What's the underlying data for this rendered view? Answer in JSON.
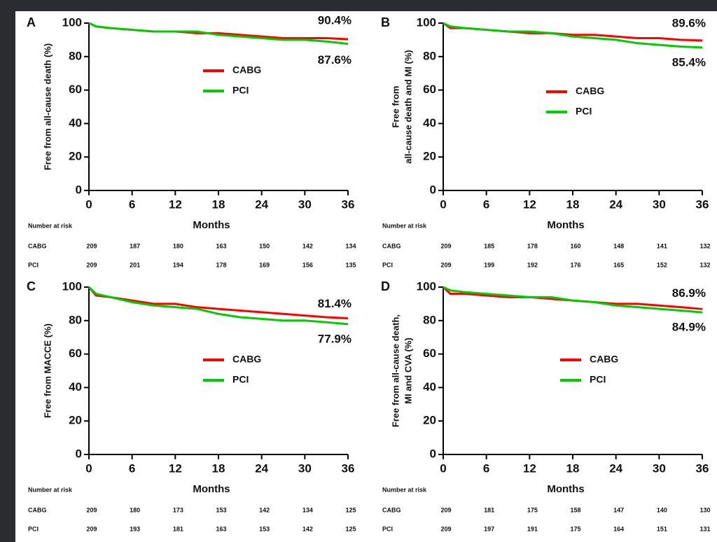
{
  "chart_data": [
    {
      "type": "line",
      "panel": "A",
      "ylabel": [
        "Free from all-cause death (%)"
      ],
      "xlabel": "Months",
      "x": [
        0,
        1,
        3,
        6,
        9,
        12,
        15,
        18,
        21,
        24,
        27,
        30,
        33,
        36
      ],
      "xlim": [
        0,
        36
      ],
      "xticks": [
        0,
        6,
        12,
        18,
        24,
        30,
        36
      ],
      "ylim": [
        0,
        100
      ],
      "yticks": [
        0,
        20,
        40,
        60,
        80,
        100
      ],
      "series": [
        {
          "name": "CABG",
          "color": "#ff0000",
          "values": [
            100,
            98,
            97,
            96,
            95,
            95,
            94,
            94,
            93,
            92,
            91,
            91,
            91,
            90.4
          ],
          "end_label": "90.4%"
        },
        {
          "name": "PCI",
          "color": "#00cc00",
          "values": [
            100,
            98,
            97,
            96,
            95,
            95,
            95,
            93,
            92,
            91,
            90,
            90,
            89,
            87.6
          ],
          "end_label": "87.6%"
        }
      ],
      "risk_table": {
        "title": "Number at risk",
        "rows": [
          {
            "name": "CABG",
            "values": [
              209,
              187,
              180,
              163,
              150,
              142,
              134
            ]
          },
          {
            "name": "PCI",
            "values": [
              209,
              201,
              194,
              178,
              169,
              156,
              135
            ]
          }
        ]
      }
    },
    {
      "type": "line",
      "panel": "B",
      "ylabel": [
        "Free from",
        "all-cause death and MI (%)"
      ],
      "xlabel": "Months",
      "x": [
        0,
        1,
        3,
        6,
        9,
        12,
        15,
        18,
        21,
        24,
        27,
        30,
        33,
        36
      ],
      "xlim": [
        0,
        36
      ],
      "xticks": [
        0,
        6,
        12,
        18,
        24,
        30,
        36
      ],
      "ylim": [
        0,
        100
      ],
      "yticks": [
        0,
        20,
        40,
        60,
        80,
        100
      ],
      "series": [
        {
          "name": "CABG",
          "color": "#ff0000",
          "values": [
            100,
            97,
            97,
            96,
            95,
            94,
            94,
            93,
            93,
            92,
            91,
            91,
            90,
            89.6
          ],
          "end_label": "89.6%"
        },
        {
          "name": "PCI",
          "color": "#00cc00",
          "values": [
            100,
            98,
            97,
            96,
            95,
            95,
            94,
            92,
            91,
            90,
            88,
            87,
            86,
            85.4
          ],
          "end_label": "85.4%"
        }
      ],
      "risk_table": {
        "title": "Number at risk",
        "rows": [
          {
            "name": "CABG",
            "values": [
              209,
              185,
              178,
              160,
              148,
              141,
              132
            ]
          },
          {
            "name": "PCI",
            "values": [
              209,
              199,
              192,
              176,
              165,
              152,
              132
            ]
          }
        ]
      }
    },
    {
      "type": "line",
      "panel": "C",
      "ylabel": [
        "Free from MACCE (%)"
      ],
      "xlabel": "Months",
      "x": [
        0,
        1,
        3,
        6,
        9,
        12,
        15,
        18,
        21,
        24,
        27,
        30,
        33,
        36
      ],
      "xlim": [
        0,
        36
      ],
      "xticks": [
        0,
        6,
        12,
        18,
        24,
        30,
        36
      ],
      "ylim": [
        0,
        100
      ],
      "yticks": [
        0,
        20,
        40,
        60,
        80,
        100
      ],
      "series": [
        {
          "name": "CABG",
          "color": "#ff0000",
          "values": [
            100,
            95,
            94,
            92,
            90,
            90,
            88,
            87,
            86,
            85,
            84,
            83,
            82,
            81.4
          ],
          "end_label": "81.4%"
        },
        {
          "name": "PCI",
          "color": "#00cc00",
          "values": [
            100,
            96,
            94,
            91,
            89,
            88,
            87,
            84,
            82,
            81,
            80,
            80,
            79,
            77.9
          ],
          "end_label": "77.9%"
        }
      ],
      "risk_table": {
        "title": "Number at risk",
        "rows": [
          {
            "name": "CABG",
            "values": [
              209,
              180,
              173,
              153,
              142,
              134,
              125
            ]
          },
          {
            "name": "PCI",
            "values": [
              209,
              193,
              181,
              163,
              153,
              142,
              125
            ]
          }
        ]
      }
    },
    {
      "type": "line",
      "panel": "D",
      "ylabel": [
        "Free from all-cause death,",
        "MI and CVA (%)"
      ],
      "xlabel": "Months",
      "x": [
        0,
        1,
        3,
        6,
        9,
        12,
        15,
        18,
        21,
        24,
        27,
        30,
        33,
        36
      ],
      "xlim": [
        0,
        36
      ],
      "xticks": [
        0,
        6,
        12,
        18,
        24,
        30,
        36
      ],
      "ylim": [
        0,
        100
      ],
      "yticks": [
        0,
        20,
        40,
        60,
        80,
        100
      ],
      "series": [
        {
          "name": "CABG",
          "color": "#ff0000",
          "values": [
            100,
            96,
            96,
            95,
            94,
            94,
            93,
            92,
            91,
            90,
            90,
            89,
            88,
            86.9
          ],
          "end_label": "86.9%"
        },
        {
          "name": "PCI",
          "color": "#00cc00",
          "values": [
            100,
            98,
            97,
            96,
            95,
            94,
            94,
            92,
            91,
            89,
            88,
            87,
            86,
            84.9
          ],
          "end_label": "84.9%"
        }
      ],
      "risk_table": {
        "title": "Number at risk",
        "rows": [
          {
            "name": "CABG",
            "values": [
              209,
              181,
              175,
              158,
              147,
              140,
              130
            ]
          },
          {
            "name": "PCI",
            "values": [
              209,
              197,
              191,
              175,
              164,
              151,
              131
            ]
          }
        ]
      }
    }
  ]
}
